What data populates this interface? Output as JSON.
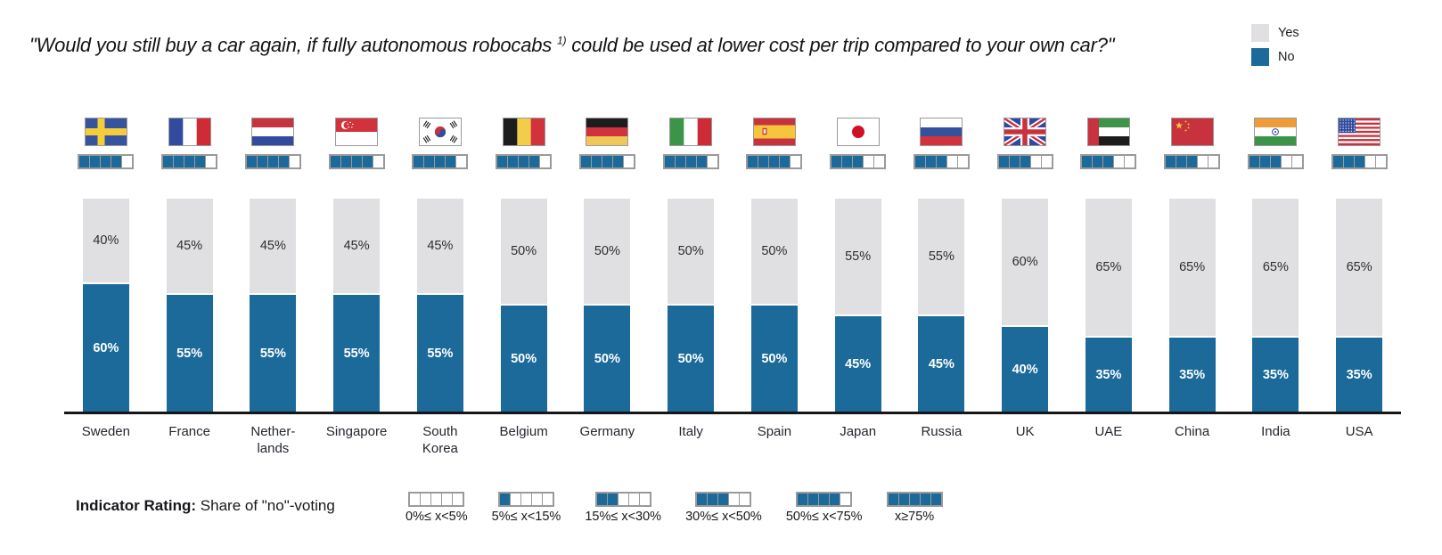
{
  "title": {
    "pre": "\"Would you still buy a car again, if fully autonomous robocabs ",
    "sup": "1)",
    "post": " could be used at lower cost per trip compared to your own car?\""
  },
  "legend": {
    "items": [
      {
        "label": "Yes",
        "color": "#E0E0E3"
      },
      {
        "label": "No",
        "color": "#1C6A99"
      }
    ]
  },
  "colors": {
    "no_blue": "#1C6A99",
    "yes_gray": "#E0E0E3",
    "square_border": "#9A9A9A",
    "axis_black": "#161616"
  },
  "value_suffix": "%",
  "countries": [
    {
      "name": "Sweden",
      "label": "Sweden",
      "flag": "se",
      "yes": 40,
      "no": 60,
      "rating": 4
    },
    {
      "name": "France",
      "label": "France",
      "flag": "fr",
      "yes": 45,
      "no": 55,
      "rating": 4
    },
    {
      "name": "Netherlands",
      "label": "Nether-\nlands",
      "flag": "nl",
      "yes": 45,
      "no": 55,
      "rating": 4
    },
    {
      "name": "Singapore",
      "label": "Singapore",
      "flag": "sg",
      "yes": 45,
      "no": 55,
      "rating": 4
    },
    {
      "name": "South Korea",
      "label": "South\nKorea",
      "flag": "kr",
      "yes": 45,
      "no": 55,
      "rating": 4
    },
    {
      "name": "Belgium",
      "label": "Belgium",
      "flag": "be",
      "yes": 50,
      "no": 50,
      "rating": 4
    },
    {
      "name": "Germany",
      "label": "Germany",
      "flag": "de",
      "yes": 50,
      "no": 50,
      "rating": 4
    },
    {
      "name": "Italy",
      "label": "Italy",
      "flag": "it",
      "yes": 50,
      "no": 50,
      "rating": 4
    },
    {
      "name": "Spain",
      "label": "Spain",
      "flag": "es",
      "yes": 50,
      "no": 50,
      "rating": 4
    },
    {
      "name": "Japan",
      "label": "Japan",
      "flag": "jp",
      "yes": 55,
      "no": 45,
      "rating": 3
    },
    {
      "name": "Russia",
      "label": "Russia",
      "flag": "ru",
      "yes": 55,
      "no": 45,
      "rating": 3
    },
    {
      "name": "UK",
      "label": "UK",
      "flag": "gb",
      "yes": 60,
      "no": 40,
      "rating": 3
    },
    {
      "name": "UAE",
      "label": "UAE",
      "flag": "ae",
      "yes": 65,
      "no": 35,
      "rating": 3
    },
    {
      "name": "China",
      "label": "China",
      "flag": "cn",
      "yes": 65,
      "no": 35,
      "rating": 3
    },
    {
      "name": "India",
      "label": "India",
      "flag": "in",
      "yes": 65,
      "no": 35,
      "rating": 3
    },
    {
      "name": "USA",
      "label": "USA",
      "flag": "us",
      "yes": 65,
      "no": 35,
      "rating": 3
    }
  ],
  "indicator_legend": {
    "label_bold": "Indicator Rating:",
    "label_rest": " Share of \"no\"-voting",
    "scale": [
      {
        "filled": 0,
        "label": "0%≤ x<5%"
      },
      {
        "filled": 1,
        "label": "5%≤ x<15%"
      },
      {
        "filled": 2,
        "label": "15%≤ x<30%"
      },
      {
        "filled": 3,
        "label": "30%≤ x<50%"
      },
      {
        "filled": 4,
        "label": "50%≤ x<75%"
      },
      {
        "filled": 5,
        "label": "x≥75%"
      }
    ]
  },
  "chart_data": {
    "type": "bar",
    "stacked": true,
    "title": "\"Would you still buy a car again, if fully autonomous robocabs 1) could be used at lower cost per trip compared to your own car?\"",
    "categories": [
      "Sweden",
      "France",
      "Netherlands",
      "Singapore",
      "South Korea",
      "Belgium",
      "Germany",
      "Italy",
      "Spain",
      "Japan",
      "Russia",
      "UK",
      "UAE",
      "China",
      "India",
      "USA"
    ],
    "series": [
      {
        "name": "Yes",
        "color": "#E0E0E3",
        "values": [
          40,
          45,
          45,
          45,
          45,
          50,
          50,
          50,
          50,
          55,
          55,
          60,
          65,
          65,
          65,
          65
        ]
      },
      {
        "name": "No",
        "color": "#1C6A99",
        "values": [
          60,
          55,
          55,
          55,
          55,
          50,
          50,
          50,
          50,
          45,
          45,
          40,
          35,
          35,
          35,
          35
        ]
      }
    ],
    "unit": "%",
    "ylim": [
      0,
      100
    ],
    "grid": false,
    "legend_position": "top-right",
    "indicator_rating": {
      "description": "Share of \"no\"-voting",
      "per_country_filled_squares": [
        4,
        4,
        4,
        4,
        4,
        4,
        4,
        4,
        4,
        3,
        3,
        3,
        3,
        3,
        3,
        3
      ],
      "scale_bins": [
        "0%≤ x<5%",
        "5%≤ x<15%",
        "15%≤ x<30%",
        "30%≤ x<50%",
        "50%≤ x<75%",
        "x≥75%"
      ]
    }
  }
}
